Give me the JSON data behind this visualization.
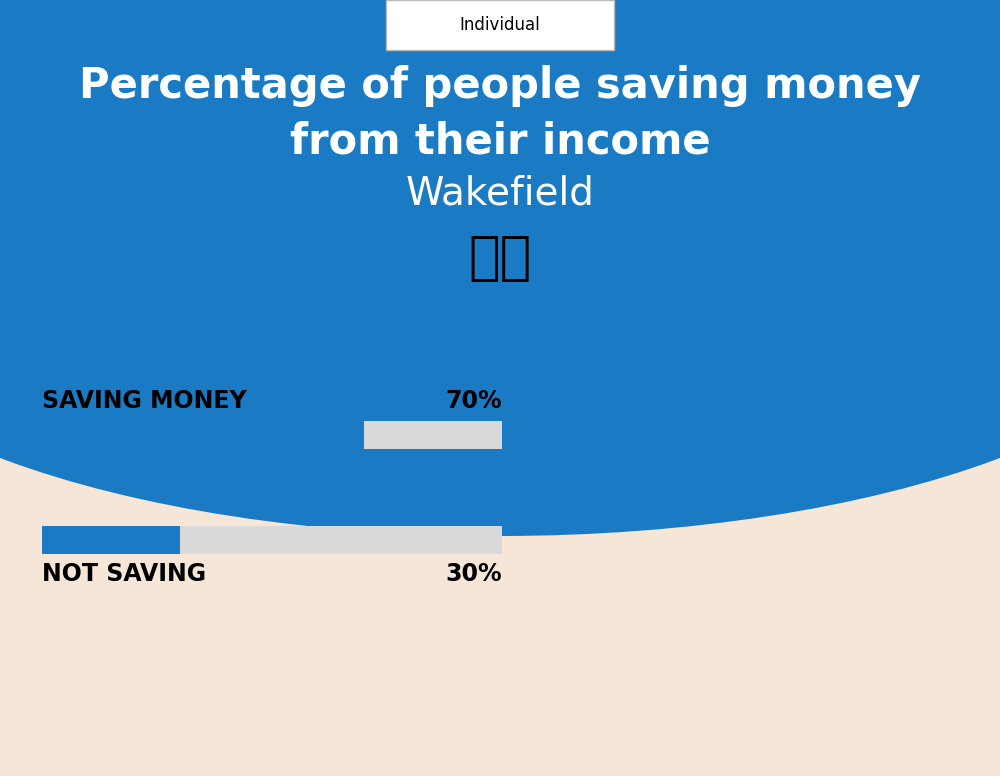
{
  "bg_color": "#f5e6d8",
  "blue_color": "#1a7bc4",
  "bar_blue": "#1a7bc4",
  "bar_gray": "#d9d9d9",
  "title_line1": "Percentage of people saving money",
  "title_line2": "from their income",
  "subtitle": "Wakefield",
  "tag_text": "Individual",
  "saving_label": "SAVING MONEY",
  "saving_value": "70%",
  "saving_pct": 0.7,
  "notsaving_label": "NOT SAVING",
  "notsaving_value": "30%",
  "notsaving_pct": 0.3,
  "white": "#ffffff",
  "black": "#000000",
  "label_fontsize": 17,
  "value_fontsize": 17,
  "title_fontsize": 30,
  "subtitle_fontsize": 28,
  "tag_fontsize": 12
}
